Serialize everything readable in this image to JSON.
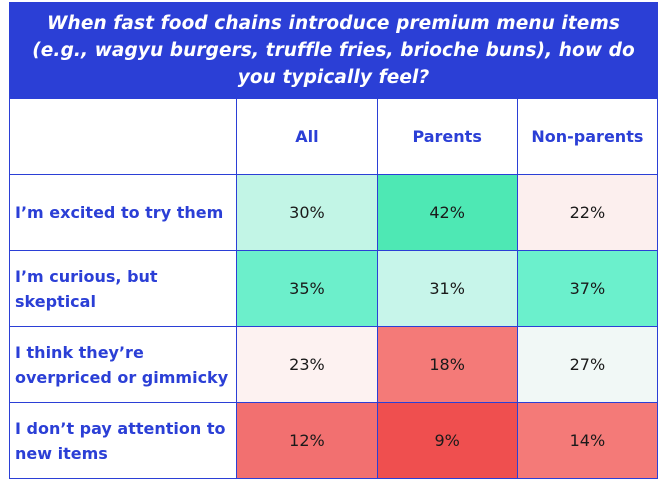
{
  "chart_data": {
    "type": "table",
    "title": "When fast food chains introduce premium menu items (e.g., wagyu burgers, truffle fries, brioche buns), how do you typically feel?",
    "columns": [
      "All",
      "Parents",
      "Non-parents"
    ],
    "rows": [
      {
        "label": "I’m excited to try them",
        "values": [
          "30%",
          "42%",
          "22%"
        ],
        "colors": [
          "#c2f5e6",
          "#4ee8b4",
          "#fcefee"
        ]
      },
      {
        "label": "I’m curious, but skeptical",
        "values": [
          "35%",
          "31%",
          "37%"
        ],
        "colors": [
          "#6cefcb",
          "#c7f5ea",
          "#6bf0cc"
        ]
      },
      {
        "label": "I think they’re overpriced or gimmicky",
        "values": [
          "23%",
          "18%",
          "27%"
        ],
        "colors": [
          "#fdf2f1",
          "#f47a78",
          "#f1f8f6"
        ]
      },
      {
        "label": "I don’t pay attention to new items",
        "values": [
          "12%",
          "9%",
          "14%"
        ],
        "colors": [
          "#f27070",
          "#ef4f4f",
          "#f47a78"
        ]
      }
    ]
  },
  "colors": {
    "accent": "#2b3fd6",
    "title_text": "#ffffff"
  }
}
